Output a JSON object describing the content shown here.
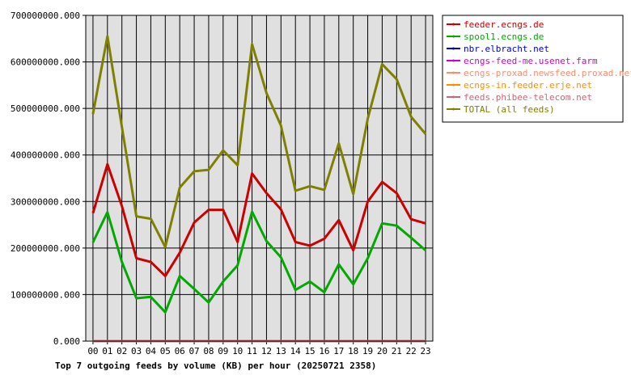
{
  "chart_data": {
    "type": "line",
    "title": "Top 7 outgoing feeds by volume (KB) per hour (20250721 2358)",
    "xlabel": "",
    "ylabel": "",
    "categories": [
      "00",
      "01",
      "02",
      "03",
      "04",
      "05",
      "06",
      "07",
      "08",
      "09",
      "10",
      "11",
      "12",
      "13",
      "14",
      "15",
      "16",
      "17",
      "18",
      "19",
      "20",
      "21",
      "22",
      "23"
    ],
    "ylim": [
      0,
      700000000
    ],
    "yticks": [
      0,
      100000000,
      200000000,
      300000000,
      400000000,
      500000000,
      600000000,
      700000000
    ],
    "ytick_labels": [
      "0.000",
      "100000000.000",
      "200000000.000",
      "300000000.000",
      "400000000.000",
      "500000000.000",
      "600000000.000",
      "700000000.000"
    ],
    "grid": true,
    "legend_position": "right",
    "series": [
      {
        "name": "feeder.ecngs.de",
        "color": "#cc0000",
        "values": [
          275000000,
          380000000,
          290000000,
          178000000,
          170000000,
          140000000,
          190000000,
          255000000,
          282000000,
          282000000,
          213000000,
          360000000,
          318000000,
          283000000,
          213000000,
          205000000,
          220000000,
          260000000,
          195000000,
          300000000,
          342000000,
          318000000,
          262000000,
          253000000
        ]
      },
      {
        "name": "spool1.ecngs.de",
        "color": "#00aa00",
        "values": [
          212000000,
          277000000,
          170000000,
          92000000,
          95000000,
          62000000,
          140000000,
          112000000,
          83000000,
          128000000,
          163000000,
          278000000,
          215000000,
          180000000,
          110000000,
          128000000,
          105000000,
          165000000,
          122000000,
          178000000,
          253000000,
          248000000,
          222000000,
          195000000
        ]
      },
      {
        "name": "nbr.elbracht.net",
        "color": "#0000cc",
        "values": [
          0,
          0,
          0,
          0,
          0,
          0,
          0,
          0,
          0,
          0,
          0,
          0,
          0,
          0,
          0,
          0,
          0,
          0,
          0,
          0,
          0,
          0,
          0,
          0
        ]
      },
      {
        "name": "ecngs-feed-me.usenet.farm",
        "color": "#cc00cc",
        "values": [
          0,
          0,
          0,
          0,
          0,
          0,
          0,
          0,
          0,
          0,
          0,
          0,
          0,
          0,
          0,
          0,
          0,
          0,
          0,
          0,
          0,
          0,
          0,
          0
        ]
      },
      {
        "name": "ecngs-proxad.newsfeed.proxad.net",
        "color": "#ff8c69",
        "values": [
          0,
          0,
          0,
          0,
          0,
          0,
          0,
          0,
          0,
          0,
          0,
          0,
          0,
          0,
          0,
          0,
          0,
          0,
          0,
          0,
          0,
          0,
          0,
          0
        ]
      },
      {
        "name": "ecngs-in.feeder.erje.net",
        "color": "#ff8c00",
        "values": [
          0,
          0,
          0,
          0,
          0,
          0,
          0,
          0,
          0,
          0,
          0,
          0,
          0,
          0,
          0,
          0,
          0,
          0,
          0,
          0,
          0,
          0,
          0,
          0
        ]
      },
      {
        "name": "feeds.phibee-telecom.net",
        "color": "#cc6677",
        "values": [
          0,
          0,
          0,
          0,
          0,
          0,
          0,
          0,
          0,
          0,
          0,
          0,
          0,
          0,
          0,
          0,
          0,
          0,
          0,
          0,
          0,
          0,
          0,
          0
        ]
      },
      {
        "name": "TOTAL (all feeds)",
        "color": "#808000",
        "values": [
          488000000,
          655000000,
          460000000,
          268000000,
          263000000,
          202000000,
          330000000,
          365000000,
          368000000,
          410000000,
          378000000,
          638000000,
          533000000,
          463000000,
          323000000,
          333000000,
          325000000,
          425000000,
          316000000,
          478000000,
          595000000,
          563000000,
          482000000,
          445000000
        ]
      }
    ]
  }
}
